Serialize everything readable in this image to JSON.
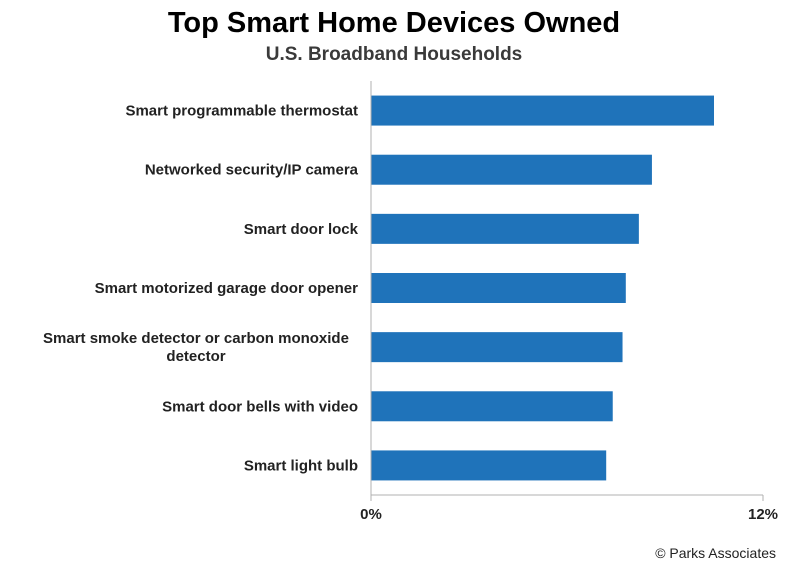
{
  "chart_data": {
    "type": "bar",
    "orientation": "horizontal",
    "title": "Top Smart Home Devices Owned",
    "subtitle": "U.S. Broadband Households",
    "categories": [
      "Smart programmable thermostat",
      "Networked security/IP camera",
      "Smart door lock",
      "Smart motorized garage door opener",
      "Smart smoke detector or carbon monoxide detector",
      "Smart door bells with video",
      "Smart light bulb"
    ],
    "values": [
      10.5,
      8.6,
      8.2,
      7.8,
      7.7,
      7.4,
      7.2
    ],
    "unit": "%",
    "xlim": [
      0,
      12
    ],
    "xticks": [
      "0%",
      "12%"
    ],
    "xlabel": "",
    "ylabel": "",
    "grid": false,
    "legend": "none",
    "bar_color": "#1f73ba"
  },
  "footer": {
    "source": "© Parks Associates"
  }
}
